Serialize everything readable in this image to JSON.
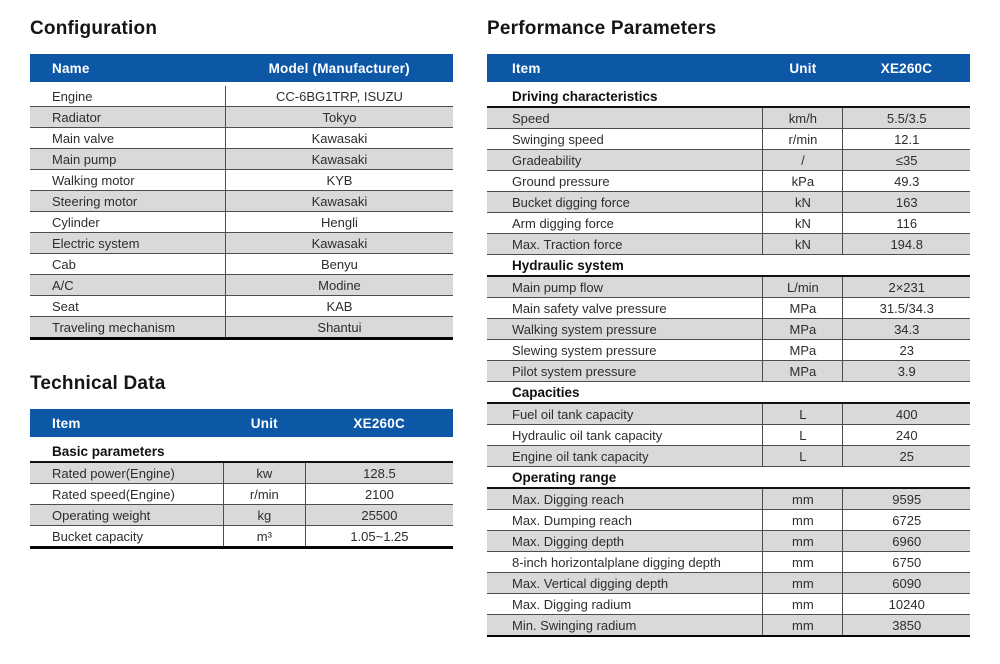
{
  "colors": {
    "header_bg": "#0d57a7",
    "header_text": "#ffffff",
    "row_alt_bg": "#d9d9d9",
    "row_bg": "#ffffff",
    "body_text": "#2d2d2d",
    "title_text": "#151515",
    "grid_line": "#4d4d4d",
    "section_line": "#111111",
    "table_bottom_line": "#050505"
  },
  "titles": {
    "configuration": "Configuration",
    "technical_data": "Technical Data",
    "performance_parameters": "Performance Parameters"
  },
  "tables": {
    "configuration": {
      "columns": [
        "Name",
        "Model (Manufacturer)"
      ],
      "col_widths": [
        "46.2%",
        "53.8%"
      ],
      "rows": [
        [
          "Engine",
          "CC-6BG1TRP, ISUZU"
        ],
        [
          "Radiator",
          "Tokyo"
        ],
        [
          "Main valve",
          "Kawasaki"
        ],
        [
          "Main pump",
          "Kawasaki"
        ],
        [
          "Walking motor",
          "KYB"
        ],
        [
          "Steering motor",
          "Kawasaki"
        ],
        [
          "Cylinder",
          "Hengli"
        ],
        [
          "Electric system",
          "Kawasaki"
        ],
        [
          "Cab",
          "Benyu"
        ],
        [
          "A/C",
          "Modine"
        ],
        [
          "Seat",
          "KAB"
        ],
        [
          "Traveling mechanism",
          "Shantui"
        ]
      ]
    },
    "technical_data": {
      "columns": [
        "Item",
        "Unit",
        "XE260C"
      ],
      "col_widths": [
        "45.7%",
        "19.4%",
        "34.9%"
      ],
      "groups": [
        {
          "header": "Basic parameters",
          "rows": [
            [
              "Rated power(Engine)",
              "kw",
              "128.5"
            ],
            [
              "Rated speed(Engine)",
              "r/min",
              "2100"
            ],
            [
              "Operating weight",
              "kg",
              "25500"
            ],
            [
              "Bucket capacity",
              "m³",
              "1.05~1.25"
            ]
          ]
        }
      ]
    },
    "performance_parameters": {
      "columns": [
        "Item",
        "Unit",
        "XE260C"
      ],
      "col_widths": [
        "57.1%",
        "16.6%",
        "26.3%"
      ],
      "groups": [
        {
          "header": "Driving characteristics",
          "rows": [
            [
              "Speed",
              "km/h",
              "5.5/3.5"
            ],
            [
              "Swinging speed",
              "r/min",
              "12.1"
            ],
            [
              "Gradeability",
              "/",
              "≤35"
            ],
            [
              "Ground pressure",
              "kPa",
              "49.3"
            ],
            [
              "Bucket digging force",
              "kN",
              "163"
            ],
            [
              "Arm digging force",
              "kN",
              "116"
            ],
            [
              "Max. Traction force",
              "kN",
              "194.8"
            ]
          ]
        },
        {
          "header": "Hydraulic system",
          "rows": [
            [
              "Main pump flow",
              "L/min",
              "2×231"
            ],
            [
              "Main safety valve pressure",
              "MPa",
              "31.5/34.3"
            ],
            [
              "Walking system pressure",
              "MPa",
              "34.3"
            ],
            [
              "Slewing system pressure",
              "MPa",
              "23"
            ],
            [
              "Pilot system pressure",
              "MPa",
              "3.9"
            ]
          ]
        },
        {
          "header": "Capacities",
          "rows": [
            [
              "Fuel oil tank capacity",
              "L",
              "400"
            ],
            [
              "Hydraulic oil tank capacity",
              "L",
              "240"
            ],
            [
              "Engine oil tank capacity",
              "L",
              "25"
            ]
          ]
        },
        {
          "header": "Operating range",
          "rows": [
            [
              "Max. Digging reach",
              "mm",
              "9595"
            ],
            [
              "Max. Dumping reach",
              "mm",
              "6725"
            ],
            [
              "Max. Digging depth",
              "mm",
              "6960"
            ],
            [
              "8-inch horizontalplane digging depth",
              "mm",
              "6750"
            ],
            [
              "Max. Vertical digging depth",
              "mm",
              "6090"
            ],
            [
              "Max. Digging radium",
              "mm",
              "10240"
            ],
            [
              "Min. Swinging radium",
              "mm",
              "3850"
            ]
          ]
        }
      ]
    }
  }
}
